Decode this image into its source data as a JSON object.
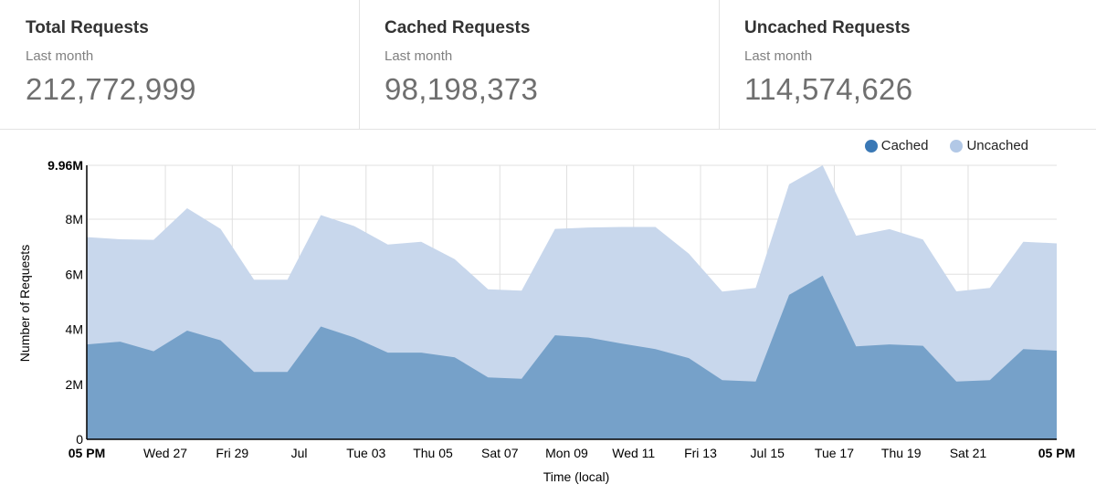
{
  "stats": [
    {
      "title": "Total Requests",
      "period": "Last month",
      "value": "212,772,999"
    },
    {
      "title": "Cached Requests",
      "period": "Last month",
      "value": "98,198,373"
    },
    {
      "title": "Uncached Requests",
      "period": "Last month",
      "value": "114,574,626"
    }
  ],
  "colors": {
    "cached_fill": "#76a1c9",
    "cached_legend": "#3a78b5",
    "uncached_fill": "#c8d7ec",
    "uncached_legend": "#b2c8e6",
    "grid": "#e0e0e0"
  },
  "chart_data": {
    "type": "area",
    "stacked": true,
    "title": "",
    "xlabel": "Time (local)",
    "ylabel": "Number of Requests",
    "ylim": [
      0,
      9.96
    ],
    "y_unit": "M",
    "y_ticks": [
      {
        "value": 0,
        "label": "0"
      },
      {
        "value": 2,
        "label": "2M"
      },
      {
        "value": 4,
        "label": "4M"
      },
      {
        "value": 6,
        "label": "6M"
      },
      {
        "value": 8,
        "label": "8M"
      },
      {
        "value": 9.96,
        "label": "9.96M",
        "bold": true
      }
    ],
    "x_range": [
      0,
      29
    ],
    "x_ticks": [
      {
        "x": 0,
        "label": "05 PM",
        "bold": true
      },
      {
        "x": 2.35,
        "label": "Wed 27"
      },
      {
        "x": 4.35,
        "label": "Fri 29"
      },
      {
        "x": 6.35,
        "label": "Jul"
      },
      {
        "x": 8.35,
        "label": "Tue 03"
      },
      {
        "x": 10.35,
        "label": "Thu 05"
      },
      {
        "x": 12.35,
        "label": "Sat 07"
      },
      {
        "x": 14.35,
        "label": "Mon 09"
      },
      {
        "x": 16.35,
        "label": "Wed 11"
      },
      {
        "x": 18.35,
        "label": "Fri 13"
      },
      {
        "x": 20.35,
        "label": "Jul 15"
      },
      {
        "x": 22.35,
        "label": "Tue 17"
      },
      {
        "x": 24.35,
        "label": "Thu 19"
      },
      {
        "x": 26.35,
        "label": "Sat 21"
      },
      {
        "x": 29,
        "label": "05 PM",
        "bold": true
      }
    ],
    "x": [
      0,
      1,
      2,
      3,
      4,
      5,
      6,
      7,
      8,
      9,
      10,
      11,
      12,
      13,
      14,
      15,
      16,
      17,
      18,
      19,
      20,
      21,
      22,
      23,
      24,
      25,
      26,
      27,
      28,
      29
    ],
    "series": [
      {
        "name": "Cached",
        "values": [
          3.45,
          3.55,
          3.2,
          3.95,
          3.6,
          2.45,
          2.45,
          4.1,
          3.7,
          3.15,
          3.15,
          2.98,
          2.25,
          2.2,
          3.78,
          3.7,
          3.48,
          3.28,
          2.95,
          2.15,
          2.1,
          5.25,
          5.95,
          3.38,
          3.45,
          3.4,
          2.1,
          2.15,
          3.28,
          3.22
        ]
      },
      {
        "name": "Uncached",
        "values": [
          3.9,
          3.72,
          4.05,
          4.45,
          4.05,
          3.35,
          3.35,
          4.05,
          4.05,
          3.93,
          4.03,
          3.57,
          3.2,
          3.2,
          3.87,
          4.0,
          4.24,
          4.44,
          3.8,
          3.22,
          3.4,
          4.02,
          4.01,
          4.02,
          4.19,
          3.86,
          3.28,
          3.35,
          3.9,
          3.9
        ]
      }
    ],
    "legend": [
      "Cached",
      "Uncached"
    ],
    "legend_position": "top-right",
    "grid": true
  }
}
